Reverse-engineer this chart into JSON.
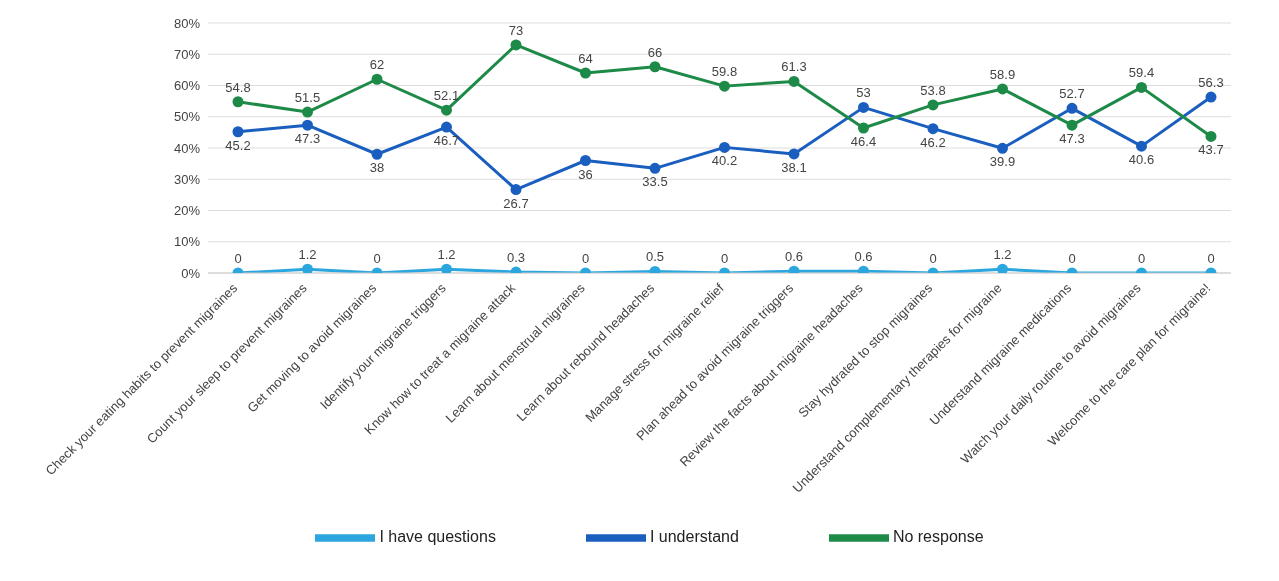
{
  "chart_data": {
    "type": "line",
    "categories": [
      "Check your eating habits to prevent migraines",
      "Count your sleep to prevent migraines",
      "Get moving to avoid migraines",
      "Identify your migraine triggers",
      "Know how to treat a migraine attack",
      "Learn about menstrual migraines",
      "Learn about rebound headaches",
      "Manage stress for migraine relief",
      "Plan ahead to avoid migraine triggers",
      "Review the facts about migraine headaches",
      "Stay hydrated to stop migraines",
      "Understand complementary therapies for migraine",
      "Understand migraine medications",
      "Watch your daily routine to avoid migraines",
      "Welcome to the care plan for migraine!"
    ],
    "series": [
      {
        "name": "I have questions",
        "color": "#2ba6de",
        "values": [
          0,
          1.2,
          0,
          1.2,
          0.3,
          0,
          0.5,
          0,
          0.6,
          0.6,
          0,
          1.2,
          0,
          0,
          0
        ]
      },
      {
        "name": "I understand",
        "color": "#1a5fbf",
        "values": [
          45.2,
          47.3,
          38,
          46.7,
          26.7,
          36,
          33.5,
          40.2,
          38.1,
          53,
          46.2,
          39.9,
          52.7,
          40.6,
          56.3
        ]
      },
      {
        "name": "No response",
        "color": "#1d8a48",
        "values": [
          54.8,
          51.5,
          62,
          52.1,
          73,
          64,
          66,
          59.8,
          61.3,
          46.4,
          53.8,
          58.9,
          47.3,
          59.4,
          43.7
        ]
      }
    ],
    "ylim": [
      0,
      80
    ],
    "yticks": [
      {
        "value": 0,
        "label": "0%"
      },
      {
        "value": 10,
        "label": "10%"
      },
      {
        "value": 20,
        "label": "20%"
      },
      {
        "value": 30,
        "label": "30%"
      },
      {
        "value": 40,
        "label": "40%"
      },
      {
        "value": 50,
        "label": "50%"
      },
      {
        "value": 60,
        "label": "60%"
      },
      {
        "value": 70,
        "label": "70%"
      },
      {
        "value": 80,
        "label": "80%"
      }
    ],
    "grid": "y",
    "legend": "bottom",
    "marker": "circle",
    "line_style": "solid",
    "data_labels": true
  }
}
